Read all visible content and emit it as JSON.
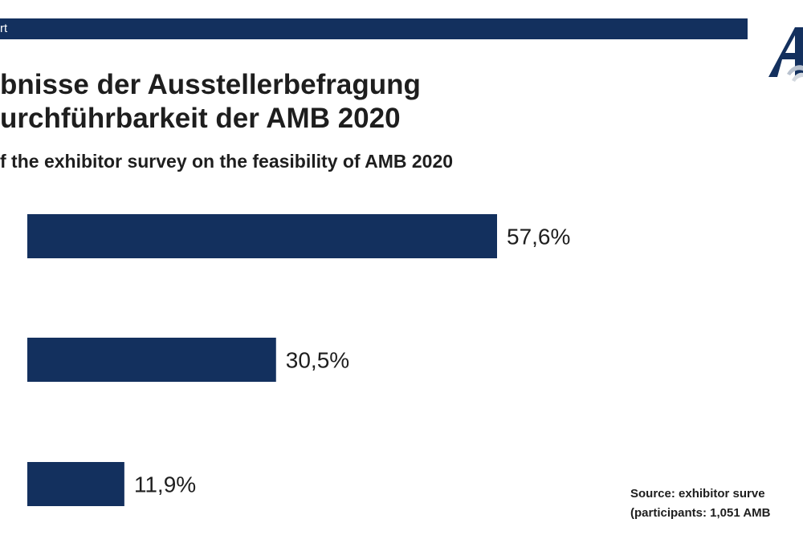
{
  "header": {
    "bar_text": "rt",
    "title_line1": "bnisse der Ausstellerbefragung",
    "title_line2": "urchführbarkeit der AMB 2020",
    "subtitle": "f the exhibitor survey on the feasibility of AMB 2020"
  },
  "logo": {
    "icon": "amb-logo-icon"
  },
  "colors": {
    "bar": "#13305e",
    "text": "#1e1e1e",
    "background": "#ffffff"
  },
  "chart_data": {
    "type": "bar",
    "orientation": "horizontal",
    "categories": [
      "",
      "",
      ""
    ],
    "values": [
      57.6,
      30.5,
      11.9
    ],
    "labels": [
      "57,6%",
      "30,5%",
      "11,9%"
    ],
    "title": "bnisse der Ausstellerbefragung urchführbarkeit der AMB 2020",
    "subtitle": "f the exhibitor survey on the feasibility of AMB 2020",
    "xlabel": "",
    "ylabel": "",
    "xlim": [
      0,
      100
    ],
    "grid": false,
    "legend": "none"
  },
  "source": {
    "line1": "Source:   exhibitor surve",
    "line2": "(participants: 1,051 AMB"
  }
}
